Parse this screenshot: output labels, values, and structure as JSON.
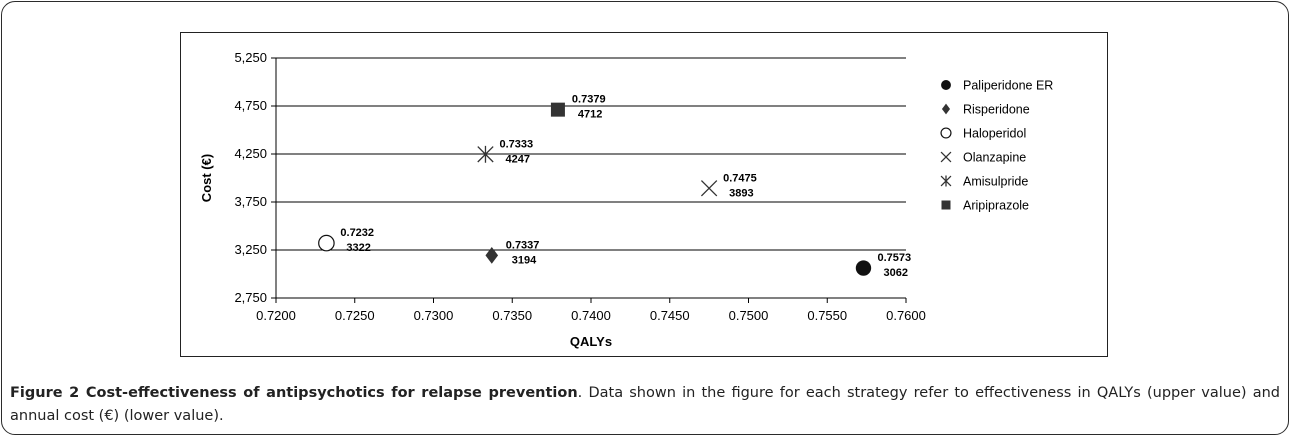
{
  "caption": {
    "figure_label": "Figure 2 Cost-effectiveness of antipsychotics for relapse prevention",
    "text": ". Data shown in the figure for each strategy refer to effectiveness in QALYs (upper value) and annual cost (€) (lower value)."
  },
  "chart_data": {
    "type": "scatter",
    "title": "",
    "xlabel": "QALYs",
    "ylabel": "Cost (€)",
    "xlim": [
      0.72,
      0.76
    ],
    "ylim": [
      2750,
      5250
    ],
    "x_ticks": [
      "0.7200",
      "0.7250",
      "0.7300",
      "0.7350",
      "0.7400",
      "0.7450",
      "0.7500",
      "0.7550",
      "0.7600"
    ],
    "y_ticks": [
      "2,750",
      "3,250",
      "3,750",
      "4,250",
      "4,750",
      "5,250"
    ],
    "grid": "horizontal",
    "legend_position": "right",
    "series": [
      {
        "name": "Paliperidone ER",
        "marker": "filled-circle",
        "x": 0.7573,
        "y": 3062,
        "label_x": "0.7573",
        "label_y": "3062"
      },
      {
        "name": "Risperidone",
        "marker": "filled-diamond",
        "x": 0.7337,
        "y": 3194,
        "label_x": "0.7337",
        "label_y": "3194"
      },
      {
        "name": "Haloperidol",
        "marker": "open-circle",
        "x": 0.7232,
        "y": 3322,
        "label_x": "0.7232",
        "label_y": "3322"
      },
      {
        "name": "Olanzapine",
        "marker": "x-cross",
        "x": 0.7475,
        "y": 3893,
        "label_x": "0.7475",
        "label_y": "3893"
      },
      {
        "name": "Amisulpride",
        "marker": "asterisk",
        "x": 0.7333,
        "y": 4247,
        "label_x": "0.7333",
        "label_y": "4247"
      },
      {
        "name": "Aripiprazole",
        "marker": "filled-square",
        "x": 0.7379,
        "y": 4712,
        "label_x": "0.7379",
        "label_y": "4712"
      }
    ]
  }
}
